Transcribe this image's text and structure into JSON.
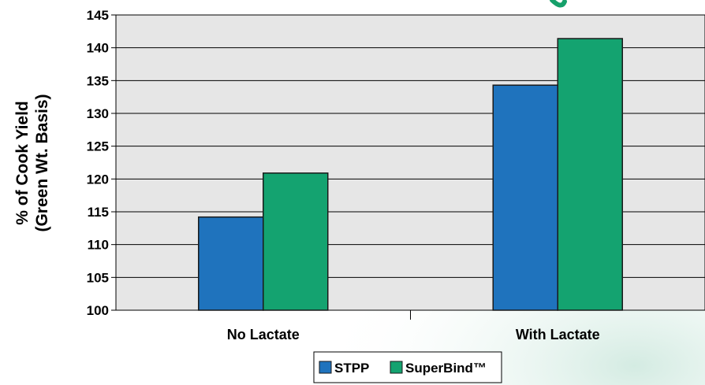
{
  "chart_data": {
    "type": "bar",
    "categories": [
      "No Lactate",
      "With Lactate"
    ],
    "series": [
      {
        "name": "STPP",
        "values": [
          114.2,
          134.3
        ],
        "color": "#1f73bd"
      },
      {
        "name": "SuperBind™",
        "values": [
          120.9,
          141.4
        ],
        "color": "#14a370"
      }
    ],
    "ylabel": [
      "% of Cook Yield",
      "(Green Wt. Basis)"
    ],
    "ylim": [
      100,
      145
    ],
    "yticks": [
      100,
      105,
      110,
      115,
      120,
      125,
      130,
      135,
      140,
      145
    ],
    "grid": true,
    "legend_position": "bottom-center",
    "plot_background": "#e6e6e6",
    "bar_outline": "#1a1a1a"
  }
}
